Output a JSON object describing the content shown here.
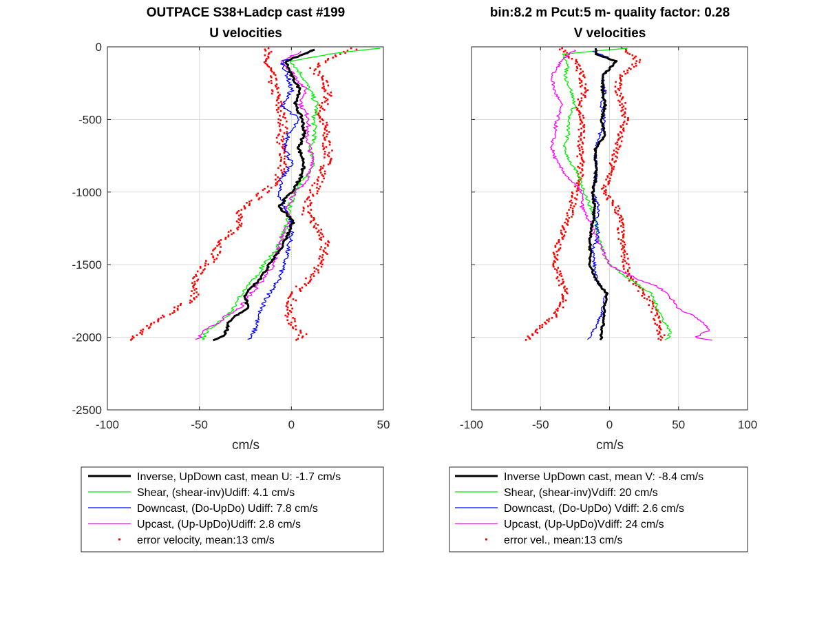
{
  "figure": {
    "left_title": [
      "OUTPACE S38+Ladcp cast #199",
      "U velocities"
    ],
    "right_title": [
      "bin:8.2 m  Pcut:5 m- quality factor:  0.28",
      "V velocities"
    ]
  },
  "chart_data": [
    {
      "type": "line",
      "panel": "U velocities",
      "title": "U velocities",
      "xlabel": "cm/s",
      "ylabel": "",
      "xlim": [
        -100,
        50
      ],
      "ylim": [
        -2500,
        0
      ],
      "xticks": [
        -100,
        -50,
        0,
        50
      ],
      "yticks": [
        0,
        -500,
        -1000,
        -1500,
        -2000,
        -2500
      ],
      "grid": true,
      "legend_position": "below",
      "series": [
        {
          "name": "Inverse, UpDown cast, mean U:  -1.7 cm/s",
          "color": "#000000",
          "style": "line",
          "width": 3,
          "depth": [
            -20,
            -100,
            -200,
            -300,
            -400,
            -500,
            -600,
            -700,
            -800,
            -900,
            -1000,
            -1100,
            -1200,
            -1300,
            -1400,
            -1500,
            -1600,
            -1700,
            -1800,
            -1850,
            -1900,
            -1950,
            -2000,
            -2020
          ],
          "values": [
            12,
            -3,
            0,
            5,
            2,
            6,
            7,
            4,
            7,
            5,
            0,
            -7,
            1,
            -2,
            -6,
            -12,
            -17,
            -25,
            -24,
            -30,
            -34,
            -35,
            -38,
            -42
          ]
        },
        {
          "name": "Shear, (shear-inv)Udiff:  4.1 cm/s",
          "color": "#00ee00",
          "style": "line",
          "width": 1.3,
          "depth": [
            -10,
            -50,
            -100,
            -200,
            -300,
            -400,
            -500,
            -600,
            -700,
            -800,
            -900,
            -1000,
            -1100,
            -1200,
            -1300,
            -1400,
            -1500,
            -1600,
            -1700,
            -1800,
            -1850,
            -1900,
            -1950,
            -2000,
            -2020
          ],
          "values": [
            48,
            20,
            0,
            6,
            10,
            14,
            12,
            13,
            10,
            13,
            7,
            2,
            -1,
            -2,
            -5,
            -8,
            -15,
            -20,
            -27,
            -32,
            -35,
            -40,
            -45,
            -48,
            -49
          ]
        },
        {
          "name": "Downcast, (Do-UpDo) Udiff:  7.8 cm/s",
          "color": "#0000ff",
          "style": "line",
          "width": 1.3,
          "depth": [
            -30,
            -100,
            -200,
            -300,
            -400,
            -500,
            -600,
            -700,
            -800,
            -900,
            -1000,
            -1100,
            -1200,
            -1300,
            -1400,
            -1500,
            -1600,
            -1700,
            -1800,
            -1900,
            -1950,
            -2000,
            -2020
          ],
          "values": [
            12,
            -5,
            -2,
            0,
            -5,
            4,
            -2,
            -3,
            0,
            -5,
            -7,
            -4,
            0,
            0,
            -2,
            -4,
            -7,
            -12,
            -16,
            -19,
            -20,
            -22,
            -23
          ]
        },
        {
          "name": "Upcast, (Up-UpDo)Udiff:  2.8 cm/s",
          "color": "#ff00ff",
          "style": "line",
          "width": 1.3,
          "depth": [
            -30,
            -100,
            -200,
            -300,
            -400,
            -500,
            -600,
            -700,
            -800,
            -900,
            -1000,
            -1100,
            -1200,
            -1300,
            -1400,
            -1500,
            -1600,
            -1700,
            -1800,
            -1850,
            -1900,
            -1950,
            -2000,
            -2020
          ],
          "values": [
            5,
            -5,
            2,
            8,
            5,
            10,
            8,
            10,
            12,
            9,
            3,
            -3,
            0,
            -5,
            -7,
            -10,
            -15,
            -22,
            -28,
            -35,
            -40,
            -48,
            -50,
            -52
          ]
        },
        {
          "name": "error velocity, mean:13 cm/s",
          "color": "#ff0000",
          "style": "dots",
          "paths": [
            {
              "depth": [
                -10,
                -80,
                -150,
                -250,
                -350,
                -450,
                -550,
                -650,
                -750,
                -850,
                -950,
                -1050,
                -1150,
                -1250,
                -1350,
                -1450,
                -1550,
                -1650,
                -1700,
                -1800,
                -1900,
                -1950,
                -2000,
                -2020
              ],
              "values": [
                35,
                20,
                12,
                18,
                20,
                15,
                18,
                19,
                20,
                18,
                14,
                10,
                8,
                14,
                18,
                17,
                14,
                5,
                2,
                -2,
                0,
                4,
                7,
                5
              ]
            },
            {
              "depth": [
                -10,
                -80,
                -150,
                -250,
                -350,
                -450,
                -550,
                -650,
                -750,
                -850,
                -950,
                -1050,
                -1150,
                -1250,
                -1350,
                -1450,
                -1550,
                -1650,
                -1700,
                -1750,
                -1800,
                -1900,
                -1950,
                -2000,
                -2020
              ],
              "values": [
                -12,
                -15,
                -12,
                -10,
                -8,
                -6,
                -4,
                -6,
                -4,
                -5,
                -10,
                -20,
                -28,
                -30,
                -38,
                -42,
                -50,
                -55,
                -52,
                -55,
                -62,
                -75,
                -80,
                -86,
                -88
              ]
            }
          ]
        }
      ]
    },
    {
      "type": "line",
      "panel": "V velocities",
      "title": "V velocities",
      "xlabel": "cm/s",
      "ylabel": "",
      "xlim": [
        -100,
        100
      ],
      "ylim": [
        -2500,
        0
      ],
      "xticks": [
        -100,
        -50,
        0,
        50,
        100
      ],
      "yticks": [
        0,
        -500,
        -1000,
        -1500,
        -2000,
        -2500
      ],
      "grid": true,
      "legend_position": "below",
      "series": [
        {
          "name": "Inverse UpDown cast, mean V:  -8.4 cm/s",
          "color": "#000000",
          "style": "line",
          "width": 3,
          "depth": [
            -10,
            -50,
            -100,
            -200,
            -300,
            -400,
            -500,
            -600,
            -700,
            -800,
            -900,
            -1000,
            -1100,
            -1200,
            -1300,
            -1400,
            -1500,
            -1600,
            -1700,
            -1800,
            -1900,
            -1950,
            -2000,
            -2020
          ],
          "values": [
            -10,
            -10,
            5,
            -5,
            -5,
            -3,
            -6,
            -3,
            -10,
            -10,
            -10,
            -12,
            -11,
            -12,
            -14,
            -14,
            -14,
            -10,
            -2,
            -4,
            -4,
            -6,
            -6,
            -7
          ]
        },
        {
          "name": "Shear, (shear-inv)Vdiff:  20 cm/s",
          "color": "#00ee00",
          "style": "line",
          "width": 1.3,
          "depth": [
            -10,
            -50,
            -100,
            -200,
            -300,
            -400,
            -500,
            -600,
            -700,
            -800,
            -900,
            -1000,
            -1100,
            -1200,
            -1300,
            -1400,
            -1500,
            -1600,
            -1700,
            -1800,
            -1900,
            -1950,
            -2000,
            -2020
          ],
          "values": [
            12,
            -35,
            -30,
            -32,
            -28,
            -25,
            -30,
            -30,
            -33,
            -28,
            -22,
            -18,
            -14,
            -10,
            -8,
            -5,
            0,
            15,
            30,
            35,
            40,
            44,
            43,
            40
          ]
        },
        {
          "name": "Downcast, (Do-UpDo) Vdiff:  2.6 cm/s",
          "color": "#0000ff",
          "style": "line",
          "width": 1.3,
          "depth": [
            -30,
            -100,
            -200,
            -300,
            -400,
            -500,
            -600,
            -700,
            -800,
            -900,
            -1000,
            -1100,
            -1200,
            -1300,
            -1400,
            -1500,
            -1600,
            -1700,
            -1800,
            -1900,
            -1950,
            -2000,
            -2020
          ],
          "values": [
            -12,
            5,
            -5,
            -3,
            -6,
            -3,
            -7,
            -10,
            -10,
            -10,
            -12,
            -8,
            -10,
            -8,
            -12,
            -11,
            -10,
            -2,
            -5,
            -8,
            -12,
            -14,
            -16
          ]
        },
        {
          "name": "Upcast, (Up-UpDo)Vdiff:  24 cm/s",
          "color": "#ff00ff",
          "style": "line",
          "width": 1.3,
          "depth": [
            -20,
            -100,
            -200,
            -300,
            -400,
            -500,
            -600,
            -700,
            -800,
            -900,
            -1000,
            -1100,
            -1200,
            -1300,
            -1400,
            -1500,
            -1600,
            -1650,
            -1700,
            -1800,
            -1850,
            -1900,
            -1950,
            -2000,
            -2020
          ],
          "values": [
            -25,
            -35,
            -42,
            -40,
            -35,
            -38,
            -40,
            -42,
            -38,
            -30,
            -20,
            -20,
            -15,
            -10,
            -5,
            0,
            20,
            35,
            42,
            50,
            60,
            68,
            72,
            62,
            75
          ]
        },
        {
          "name": "error vel., mean:13 cm/s",
          "color": "#ff0000",
          "style": "dots",
          "paths": [
            {
              "depth": [
                -10,
                -100,
                -200,
                -300,
                -400,
                -500,
                -600,
                -700,
                -800,
                -900,
                -1000,
                -1100,
                -1200,
                -1300,
                -1400,
                -1500,
                -1600,
                -1700,
                -1800,
                -1900,
                -1950,
                -2000,
                -2020
              ],
              "values": [
                10,
                22,
                8,
                5,
                10,
                12,
                8,
                5,
                2,
                0,
                -5,
                5,
                8,
                8,
                10,
                12,
                15,
                25,
                32,
                35,
                36,
                38,
                37
              ]
            },
            {
              "depth": [
                -10,
                -100,
                -200,
                -300,
                -400,
                -500,
                -600,
                -700,
                -800,
                -900,
                -1000,
                -1100,
                -1200,
                -1300,
                -1400,
                -1500,
                -1600,
                -1700,
                -1800,
                -1900,
                -1950,
                -2000,
                -2020
              ],
              "values": [
                -35,
                -25,
                -20,
                -18,
                -22,
                -20,
                -20,
                -22,
                -20,
                -22,
                -25,
                -27,
                -30,
                -35,
                -38,
                -40,
                -36,
                -32,
                -35,
                -45,
                -52,
                -58,
                -60
              ]
            }
          ]
        }
      ]
    }
  ]
}
